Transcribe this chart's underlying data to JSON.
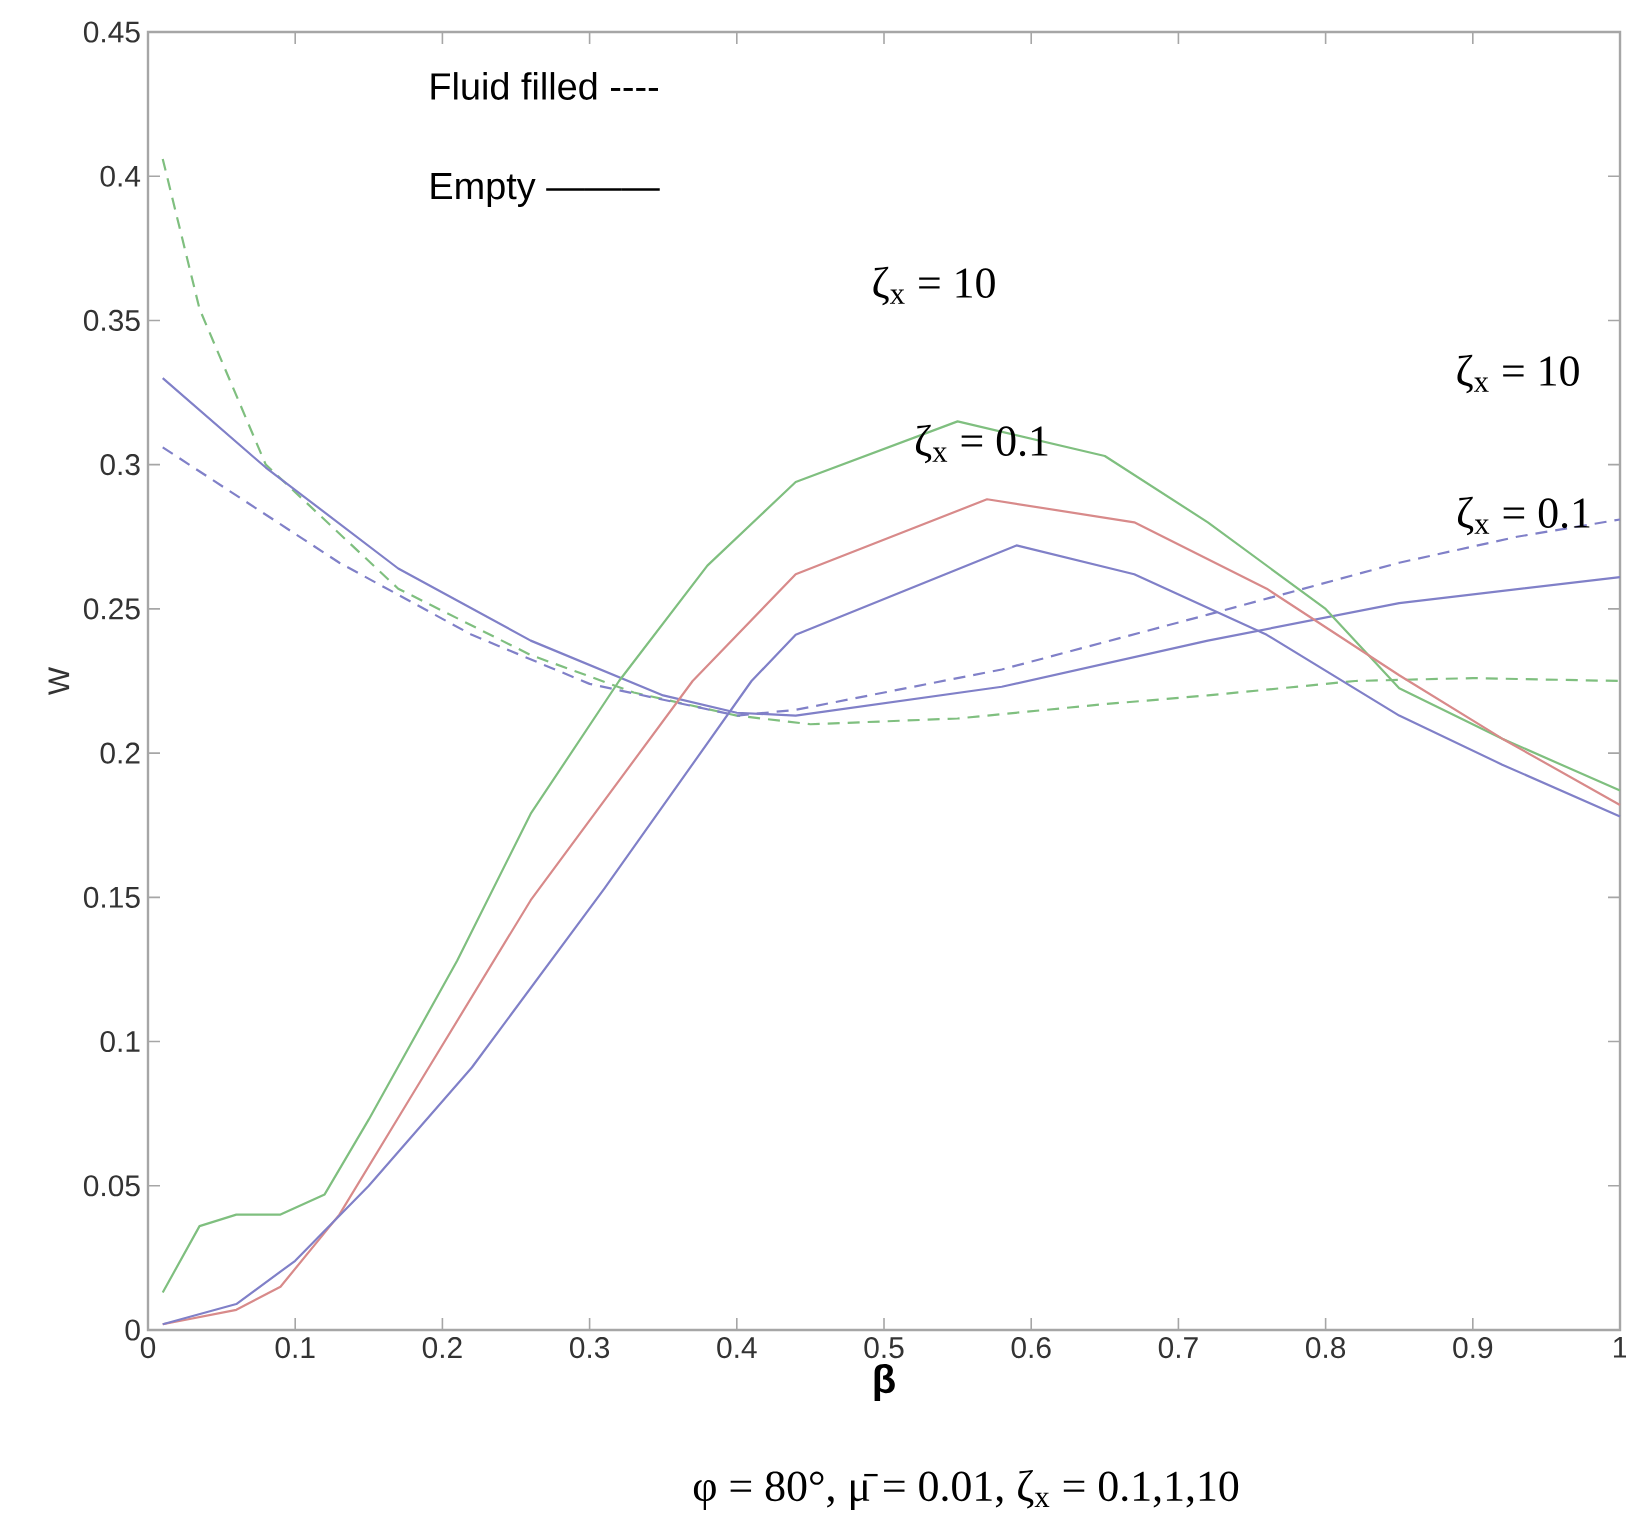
{
  "chart_data": {
    "type": "line",
    "xlabel": "**β**",
    "ylabel": "W",
    "xlim": [
      0,
      1
    ],
    "ylim": [
      0,
      0.45
    ],
    "xticks": [
      0,
      0.1,
      0.2,
      0.3,
      0.4,
      0.5,
      0.6,
      0.7,
      0.8,
      0.9,
      1
    ],
    "yticks": [
      0,
      0.05,
      0.1,
      0.15,
      0.2,
      0.25,
      0.3,
      0.35,
      0.4,
      0.45
    ],
    "grid": false,
    "marker": "none",
    "annotations": [
      "Fluid filled ----",
      "Empty ———",
      "ζ$_{x}$ = 10",
      "ζ$_{x}$ = 0.1",
      "ζ$_{x}$ = 10",
      "ζ$_{x}$ = 0.1",
      "φ = 80°, μ̄ = 0.01, ζ$_{x}$ = 0.1,1,10"
    ],
    "series": [
      {
        "color": "#7fbf7f",
        "line_style": "dashed",
        "x": [
          0.01,
          0.035,
          0.08,
          0.17,
          0.26,
          0.33,
          0.4,
          0.45,
          0.55,
          0.65,
          0.72,
          0.82,
          0.9,
          1.0
        ],
        "values": [
          0.406,
          0.354,
          0.3,
          0.257,
          0.234,
          0.221,
          0.213,
          0.21,
          0.212,
          0.217,
          0.22,
          0.225,
          0.226,
          0.225
        ]
      },
      {
        "color": "#8080c8",
        "line_style": "dashed",
        "x": [
          0.01,
          0.13,
          0.22,
          0.3,
          0.4,
          0.44,
          0.58,
          0.72,
          0.85,
          0.93,
          1.0
        ],
        "values": [
          0.306,
          0.266,
          0.241,
          0.224,
          0.213,
          0.215,
          0.229,
          0.248,
          0.266,
          0.275,
          0.281
        ]
      },
      {
        "color": "#8080c8",
        "line_style": "solid",
        "x": [
          0.01,
          0.08,
          0.17,
          0.26,
          0.35,
          0.4,
          0.44,
          0.58,
          0.72,
          0.85,
          1.0
        ],
        "values": [
          0.33,
          0.299,
          0.264,
          0.239,
          0.22,
          0.214,
          0.213,
          0.223,
          0.239,
          0.252,
          0.261
        ]
      },
      {
        "color": "#7fbf7f",
        "line_style": "solid",
        "x": [
          0.01,
          0.035,
          0.06,
          0.09,
          0.12,
          0.15,
          0.21,
          0.26,
          0.32,
          0.38,
          0.44,
          0.55,
          0.65,
          0.72,
          0.8,
          0.85,
          0.92,
          1.0
        ],
        "values": [
          0.013,
          0.036,
          0.04,
          0.04,
          0.047,
          0.073,
          0.128,
          0.179,
          0.225,
          0.265,
          0.294,
          0.315,
          0.303,
          0.28,
          0.25,
          0.2225,
          0.205,
          0.187
        ]
      },
      {
        "color": "#d88a8a",
        "line_style": "solid",
        "x": [
          0.01,
          0.06,
          0.09,
          0.13,
          0.18,
          0.26,
          0.37,
          0.44,
          0.57,
          0.67,
          0.76,
          0.85,
          0.92,
          1.0
        ],
        "values": [
          0.002,
          0.007,
          0.015,
          0.04,
          0.082,
          0.149,
          0.225,
          0.262,
          0.288,
          0.28,
          0.257,
          0.227,
          0.205,
          0.182
        ]
      },
      {
        "color": "#8080c8",
        "line_style": "solid",
        "x": [
          0.01,
          0.06,
          0.1,
          0.15,
          0.22,
          0.31,
          0.41,
          0.44,
          0.59,
          0.67,
          0.76,
          0.85,
          0.92,
          1.0
        ],
        "values": [
          0.002,
          0.009,
          0.024,
          0.05,
          0.091,
          0.153,
          0.225,
          0.241,
          0.272,
          0.262,
          0.241,
          0.213,
          0.196,
          0.178
        ]
      }
    ]
  }
}
